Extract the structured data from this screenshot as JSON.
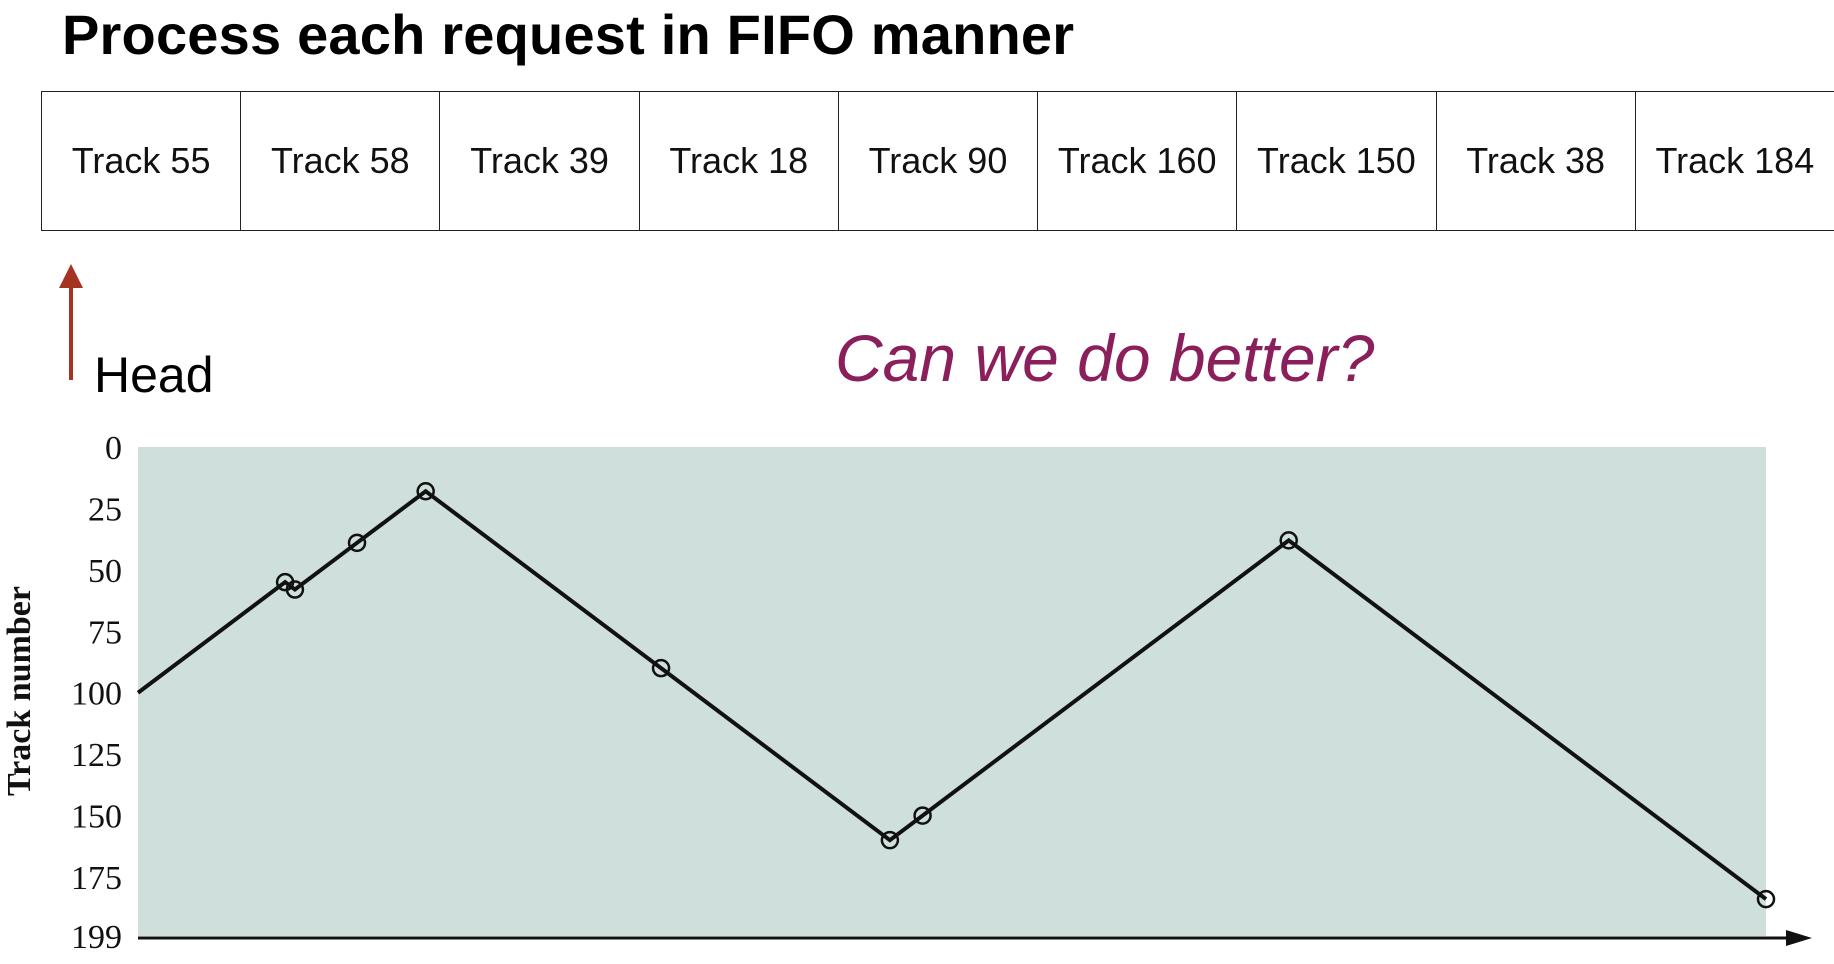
{
  "title": "Process each request in FIFO manner",
  "queue": [
    "Track 55",
    "Track 58",
    "Track 39",
    "Track 18",
    "Track 90",
    "Track 160",
    "Track 150",
    "Track 38",
    "Track 184"
  ],
  "head_label": "Head",
  "question": "Can we do better?",
  "colors": {
    "head_arrow": "#a63222",
    "question": "#8a1f5c",
    "plot_background": "#cfe0dc",
    "line": "#111111"
  },
  "chart_data": {
    "type": "line",
    "ylabel": "Track number",
    "yticks": [
      "0",
      "25",
      "50",
      "75",
      "100",
      "125",
      "150",
      "175",
      "199"
    ],
    "ylim": [
      0,
      199
    ],
    "y_inverted": true,
    "start_track": 100,
    "series": [
      {
        "values": [
          55,
          58,
          39,
          18,
          90,
          160,
          150,
          38,
          184
        ]
      }
    ]
  }
}
